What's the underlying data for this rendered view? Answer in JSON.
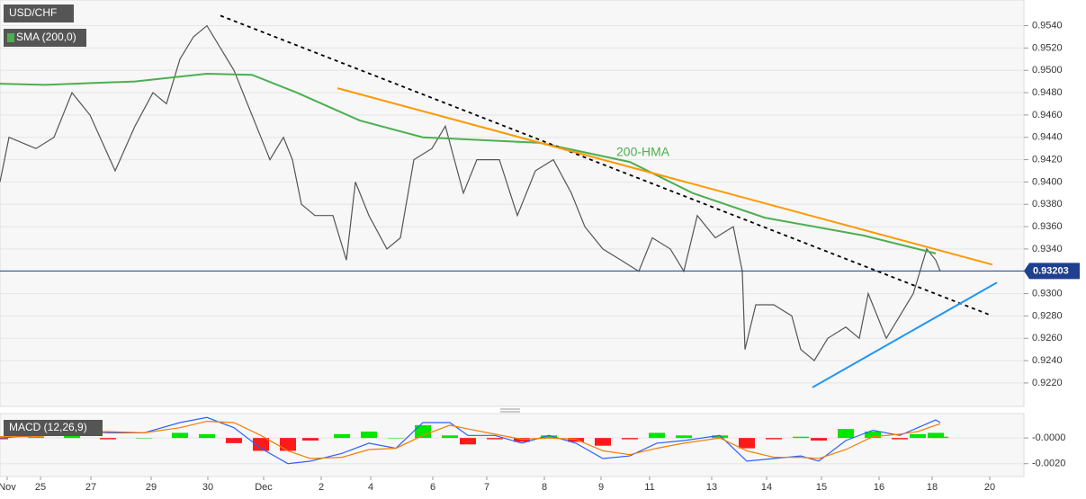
{
  "chart_data": [
    {
      "type": "line",
      "title": "USD/CHF",
      "annotation": "200-HMA",
      "xlim": [
        0,
        1138
      ],
      "ylim": [
        0.9199,
        0.9563
      ],
      "yticks": [
        {
          "value": 0.922,
          "label": "0.9220"
        },
        {
          "value": 0.924,
          "label": "0.9240"
        },
        {
          "value": 0.926,
          "label": "0.9260"
        },
        {
          "value": 0.928,
          "label": "0.9280"
        },
        {
          "value": 0.93,
          "label": "0.9300"
        },
        {
          "value": 0.932,
          "label": "0.9320"
        },
        {
          "value": 0.934,
          "label": "0.9340"
        },
        {
          "value": 0.936,
          "label": "0.9360"
        },
        {
          "value": 0.938,
          "label": "0.9380"
        },
        {
          "value": 0.94,
          "label": "0.9400"
        },
        {
          "value": 0.942,
          "label": "0.9420"
        },
        {
          "value": 0.944,
          "label": "0.9440"
        },
        {
          "value": 0.946,
          "label": "0.9460"
        },
        {
          "value": 0.948,
          "label": "0.9480"
        },
        {
          "value": 0.95,
          "label": "0.9500"
        },
        {
          "value": 0.952,
          "label": "0.9520"
        },
        {
          "value": 0.954,
          "label": "0.9540"
        }
      ],
      "grid": true,
      "last_price": 0.93203,
      "last_price_color": "#1f3f8f",
      "price": {
        "color": "#555555",
        "x": [
          0,
          10,
          40,
          60,
          80,
          100,
          128,
          150,
          170,
          185,
          200,
          215,
          230,
          245,
          260,
          275,
          290,
          300,
          315,
          325,
          335,
          350,
          370,
          385,
          395,
          410,
          430,
          445,
          460,
          480,
          495,
          505,
          515,
          530,
          555,
          575,
          595,
          615,
          635,
          650,
          670,
          690,
          710,
          725,
          745,
          760,
          775,
          795,
          815,
          825,
          828,
          840,
          860,
          880,
          890,
          905,
          920,
          940,
          955,
          965,
          985,
          1000,
          1015,
          1030,
          1040,
          1045
        ],
        "values": [
          0.94,
          0.944,
          0.943,
          0.944,
          0.948,
          0.946,
          0.941,
          0.945,
          0.948,
          0.947,
          0.951,
          0.953,
          0.954,
          0.952,
          0.95,
          0.947,
          0.944,
          0.942,
          0.944,
          0.942,
          0.938,
          0.937,
          0.937,
          0.933,
          0.94,
          0.937,
          0.934,
          0.935,
          0.942,
          0.943,
          0.945,
          0.942,
          0.939,
          0.942,
          0.942,
          0.937,
          0.941,
          0.942,
          0.939,
          0.936,
          0.934,
          0.933,
          0.932,
          0.935,
          0.934,
          0.932,
          0.937,
          0.935,
          0.936,
          0.932,
          0.925,
          0.929,
          0.929,
          0.928,
          0.925,
          0.924,
          0.926,
          0.927,
          0.926,
          0.93,
          0.926,
          0.928,
          0.93,
          0.934,
          0.933,
          0.932
        ]
      },
      "series": [
        {
          "name": "SMA (200,0)",
          "color": "#4caf50",
          "x": [
            0,
            50,
            150,
            230,
            280,
            330,
            400,
            470,
            600,
            700,
            770,
            850,
            960,
            1040
          ],
          "values": [
            0.9488,
            0.9487,
            0.949,
            0.9497,
            0.9496,
            0.948,
            0.9455,
            0.944,
            0.9435,
            0.9418,
            0.939,
            0.9368,
            0.9352,
            0.9336
          ]
        }
      ],
      "trendlines": [
        {
          "color": "#000000",
          "dash": true,
          "x": [
            245,
            1100
          ],
          "values": [
            0.9549,
            0.9281
          ]
        },
        {
          "color": "#ff9800",
          "dash": false,
          "x": [
            375,
            1103
          ],
          "values": [
            0.9484,
            0.9326
          ]
        },
        {
          "color": "#2196f3",
          "dash": false,
          "x": [
            903,
            1108
          ],
          "values": [
            0.9216,
            0.931
          ]
        }
      ]
    },
    {
      "type": "macd",
      "title": "MACD (12,26,9)",
      "xlim": [
        0,
        1138
      ],
      "ylim": [
        -0.003,
        0.0019
      ],
      "yticks": [
        {
          "value": 0,
          "label": "-0.0000"
        },
        {
          "value": -0.002,
          "label": "-0.0020"
        }
      ],
      "xticks": [
        {
          "value": 8,
          "label": "Nov"
        },
        {
          "value": 45,
          "label": "25"
        },
        {
          "value": 101,
          "label": "27"
        },
        {
          "value": 168,
          "label": "29"
        },
        {
          "value": 231,
          "label": "30"
        },
        {
          "value": 293,
          "label": "Dec"
        },
        {
          "value": 357,
          "label": "2"
        },
        {
          "value": 412,
          "label": "4"
        },
        {
          "value": 481,
          "label": "6"
        },
        {
          "value": 541,
          "label": "7"
        },
        {
          "value": 605,
          "label": "8"
        },
        {
          "value": 668,
          "label": "9"
        },
        {
          "value": 722,
          "label": "11"
        },
        {
          "value": 791,
          "label": "13"
        },
        {
          "value": 852,
          "label": "14"
        },
        {
          "value": 913,
          "label": "15"
        },
        {
          "value": 977,
          "label": "16"
        },
        {
          "value": 1036,
          "label": "18"
        },
        {
          "value": 1100,
          "label": "20"
        }
      ],
      "x": [
        0,
        40,
        80,
        120,
        160,
        200,
        230,
        260,
        290,
        320,
        345,
        380,
        410,
        440,
        470,
        500,
        520,
        550,
        580,
        610,
        640,
        670,
        700,
        730,
        760,
        800,
        830,
        860,
        890,
        910,
        940,
        970,
        1000,
        1020,
        1040,
        1045
      ],
      "series": [
        {
          "color": "#2962ff",
          "values": [
            0.0,
            0.0002,
            0.0006,
            0.0004,
            0.0004,
            0.0012,
            0.0016,
            0.0008,
            -0.0008,
            -0.002,
            -0.0018,
            -0.0012,
            -0.0004,
            -0.0008,
            0.0012,
            0.0012,
            0.0002,
            0.0002,
            -0.0004,
            0.0002,
            -0.0004,
            -0.0016,
            -0.0014,
            -0.0004,
            -0.0002,
            0.0002,
            -0.0018,
            -0.0016,
            -0.0014,
            -0.0018,
            -0.0002,
            0.0006,
            0.0002,
            0.0008,
            0.0014,
            0.0012
          ]
        },
        {
          "color": "#f57c00",
          "values": [
            0.0001,
            0.0001,
            0.0004,
            0.0005,
            0.0004,
            0.0008,
            0.0013,
            0.0012,
            0.0002,
            -0.001,
            -0.0016,
            -0.0015,
            -0.0009,
            -0.0008,
            0.0002,
            0.001,
            0.0007,
            0.0003,
            -0.0001,
            0.0,
            -0.0001,
            -0.001,
            -0.0013,
            -0.0008,
            -0.0004,
            0.0,
            -0.001,
            -0.0015,
            -0.0015,
            -0.0016,
            -0.0009,
            0.0001,
            0.0003,
            0.0005,
            0.001,
            0.0011
          ]
        }
      ],
      "histogram": {
        "up_color": "#00e600",
        "down_color": "#ff1a1a",
        "values": [
          -0.0001,
          0.0001,
          0.0002,
          -0.0001,
          0.0,
          0.0004,
          0.0003,
          -0.0004,
          -0.001,
          -0.001,
          -0.0002,
          0.0003,
          0.0005,
          0.0,
          0.001,
          0.0002,
          -0.0005,
          -0.0001,
          -0.0003,
          0.0002,
          -0.0003,
          -0.0006,
          -0.0001,
          0.0004,
          0.0002,
          0.0002,
          -0.0008,
          -0.0001,
          0.0001,
          -0.0002,
          0.0007,
          0.0005,
          -0.0001,
          0.0003,
          0.0004,
          0.0001
        ]
      }
    }
  ]
}
